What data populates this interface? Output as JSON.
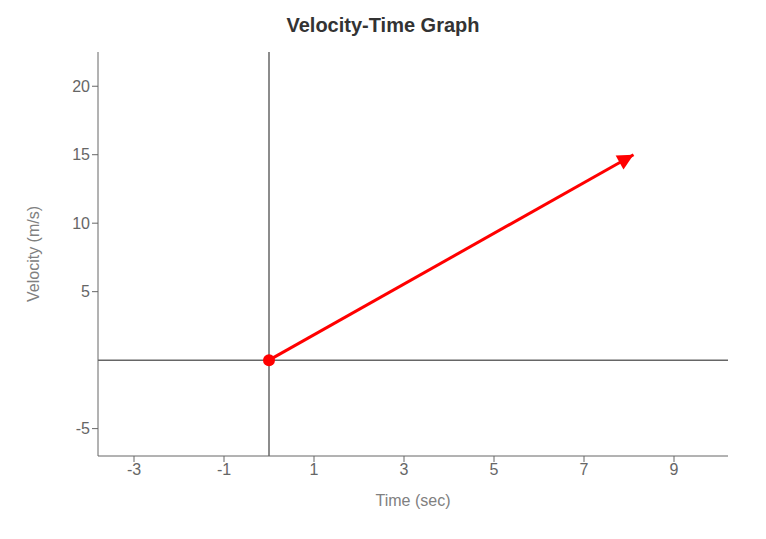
{
  "chart_data": {
    "type": "line",
    "title": "Velocity-Time Graph",
    "xlabel": "Time (sec)",
    "ylabel": "Velocity (m/s)",
    "x": [
      0,
      8.1
    ],
    "values": [
      0,
      15.0
    ],
    "color": "#ff0000",
    "xlim": [
      -3.8,
      10.2
    ],
    "ylim": [
      -7.0,
      22.5
    ],
    "xticks": [
      -3,
      -1,
      1,
      3,
      5,
      7,
      9
    ],
    "yticks": [
      -5,
      5,
      10,
      15,
      20
    ],
    "grid": false
  }
}
